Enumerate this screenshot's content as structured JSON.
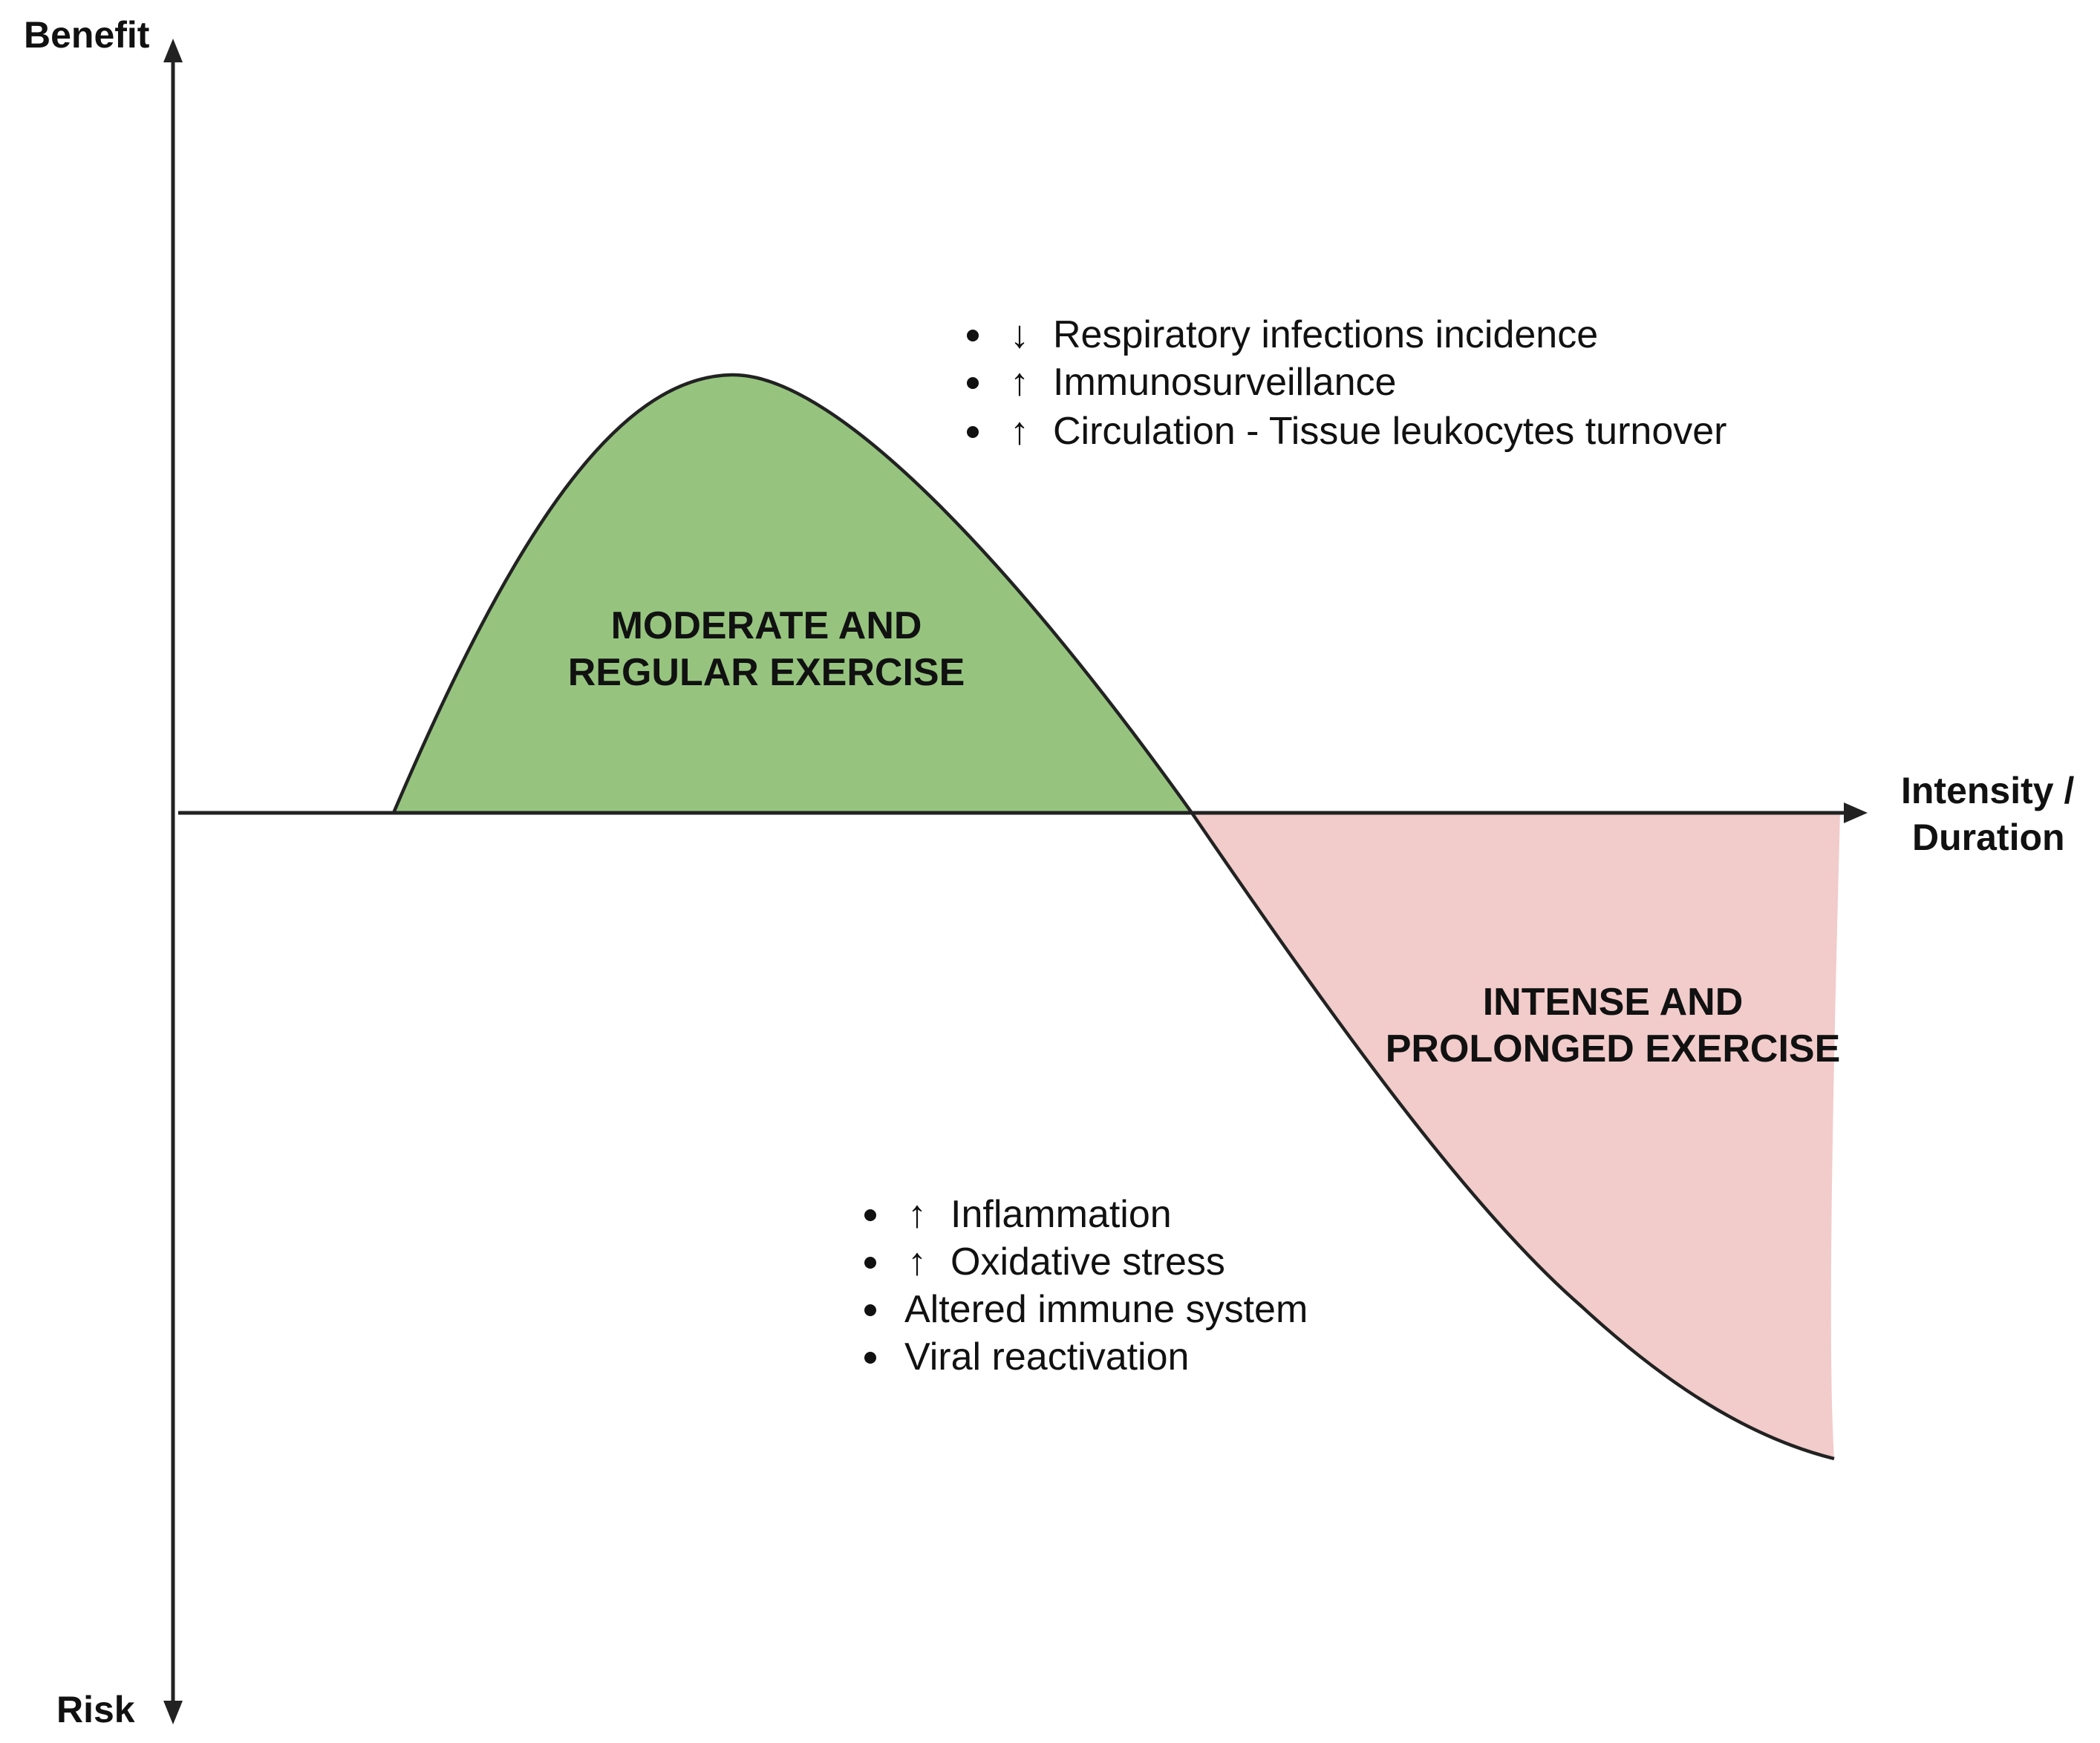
{
  "axes": {
    "y_top_label": "Benefit",
    "y_bottom_label": "Risk",
    "x_label_line1": "Intensity /",
    "x_label_line2": "Duration"
  },
  "regions": {
    "moderate": {
      "line1": "MODERATE AND",
      "line2": "REGULAR EXERCISE",
      "color": "#96c47f"
    },
    "intense": {
      "line1": "INTENSE AND",
      "line2": "PROLONGED EXERCISE",
      "color": "#f2cbcb"
    }
  },
  "benefits": {
    "items": [
      {
        "arrow": "↓",
        "text": "Respiratory infections incidence"
      },
      {
        "arrow": "↑",
        "text": "Immunosurveillance"
      },
      {
        "arrow": "↑",
        "text": "Circulation - Tissue leukocytes turnover"
      }
    ]
  },
  "risks": {
    "items": [
      {
        "arrow": "↑",
        "text": "Inflammation"
      },
      {
        "arrow": "↑",
        "text": "Oxidative stress"
      },
      {
        "arrow": "",
        "text": "Altered immune system"
      },
      {
        "arrow": "",
        "text": "Viral reactivation"
      }
    ]
  }
}
